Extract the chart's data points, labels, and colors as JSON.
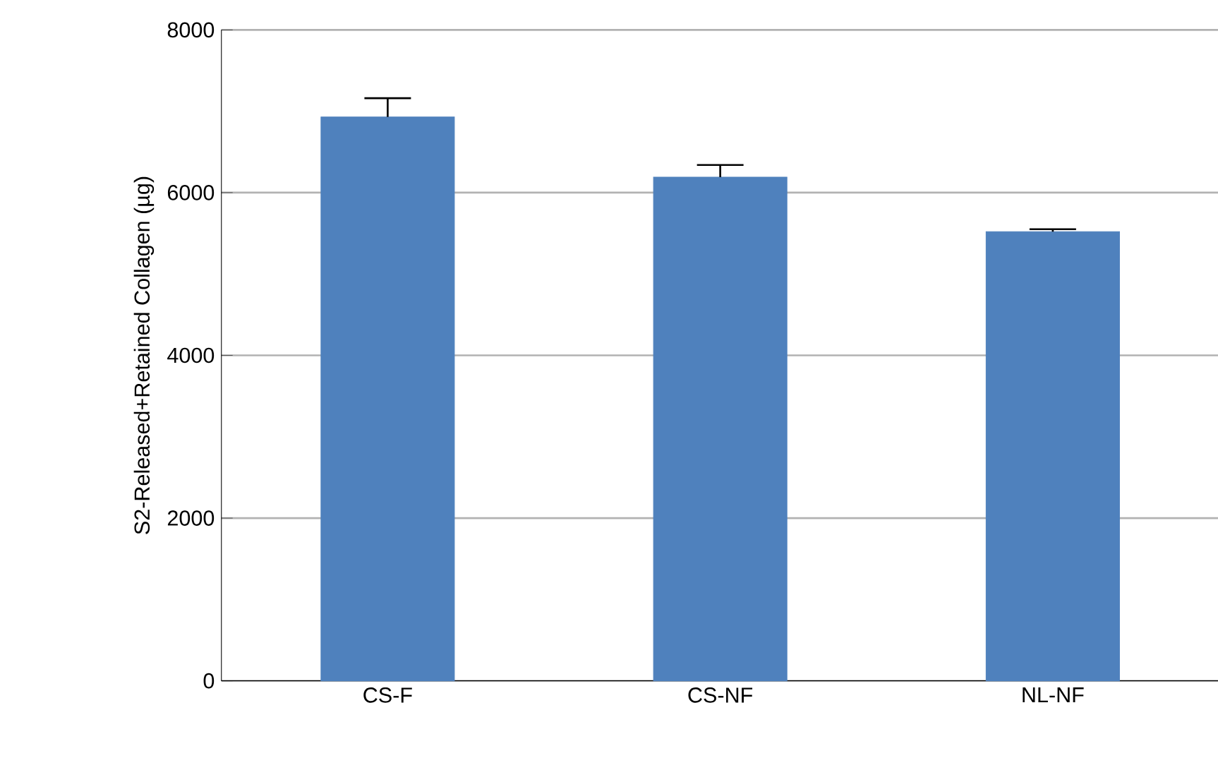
{
  "chart_data": {
    "type": "bar",
    "ylabel": "S2-Released+Retained  Collagen (µg)",
    "categories": [
      "CS-F",
      "CS-NF",
      "NL-NF"
    ],
    "values": [
      6930,
      6190,
      5520
    ],
    "errors": [
      [
        6930,
        7160
      ],
      [
        6190,
        6340
      ],
      [
        5520,
        5550
      ]
    ],
    "color": "#4f81bd",
    "ylim": [
      0,
      8000
    ],
    "yticks": [
      0,
      2000,
      4000,
      6000,
      8000
    ],
    "grid": "y"
  }
}
